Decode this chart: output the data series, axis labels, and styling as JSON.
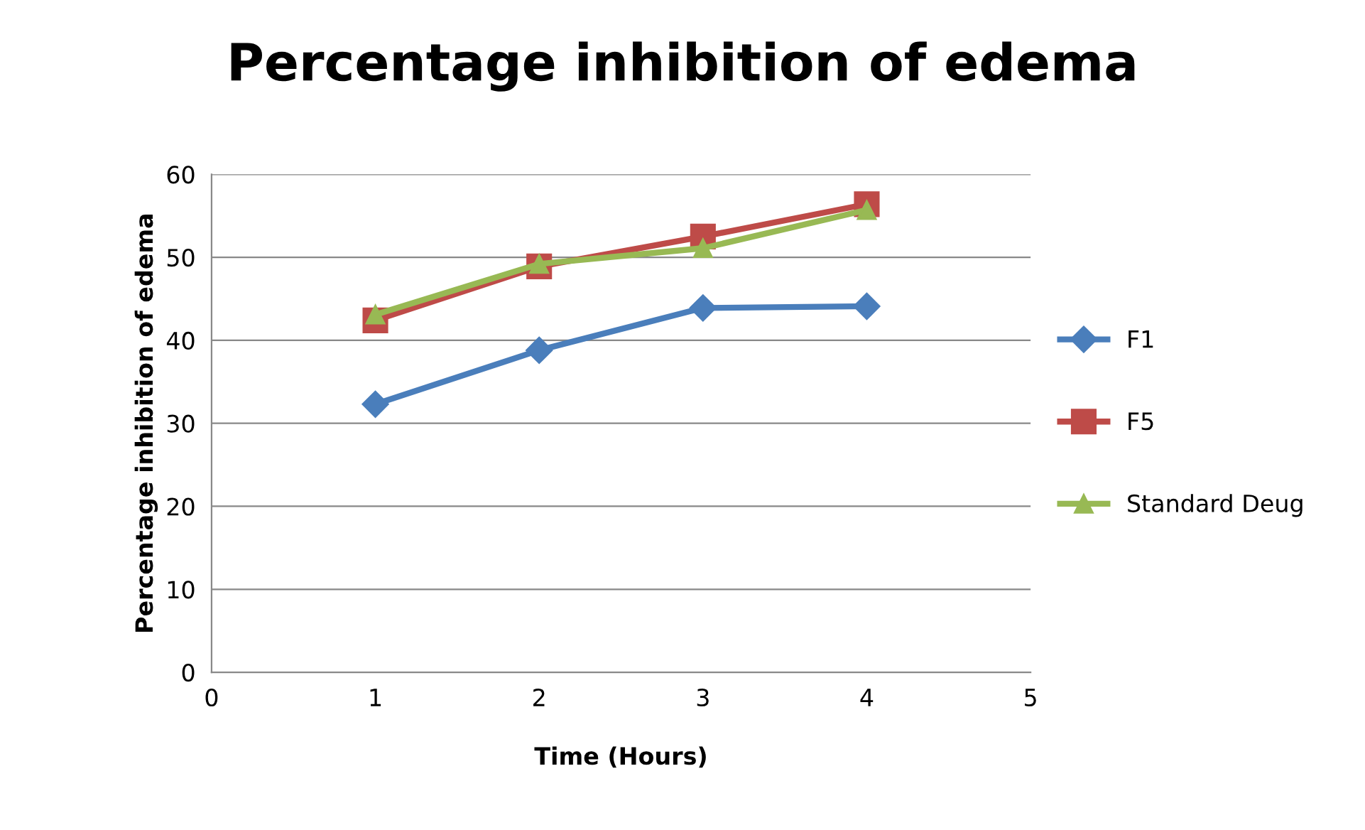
{
  "chart_data": {
    "type": "line",
    "title": "Percentage inhibition of edema",
    "xlabel": "Time (Hours)",
    "ylabel": "Percentage inhibition of edema",
    "x": [
      1,
      2,
      3,
      4
    ],
    "series": [
      {
        "name": "F1",
        "color": "#4a7ebb",
        "marker": "diamond",
        "values": [
          32.3,
          38.8,
          43.9,
          44.1
        ]
      },
      {
        "name": "F5",
        "color": "#be4b48",
        "marker": "square",
        "values": [
          42.4,
          48.9,
          52.5,
          56.4
        ]
      },
      {
        "name": "Standard Deug",
        "color": "#98b954",
        "marker": "triangle",
        "values": [
          43.1,
          49.2,
          51.1,
          55.7
        ]
      }
    ],
    "xlim": [
      0,
      5
    ],
    "xticks": [
      0,
      1,
      2,
      3,
      4,
      5
    ],
    "ylim": [
      0,
      60
    ],
    "yticks": [
      0,
      10,
      20,
      30,
      40,
      50,
      60
    ],
    "grid": "y",
    "legend": "right",
    "line_style": "solid"
  }
}
